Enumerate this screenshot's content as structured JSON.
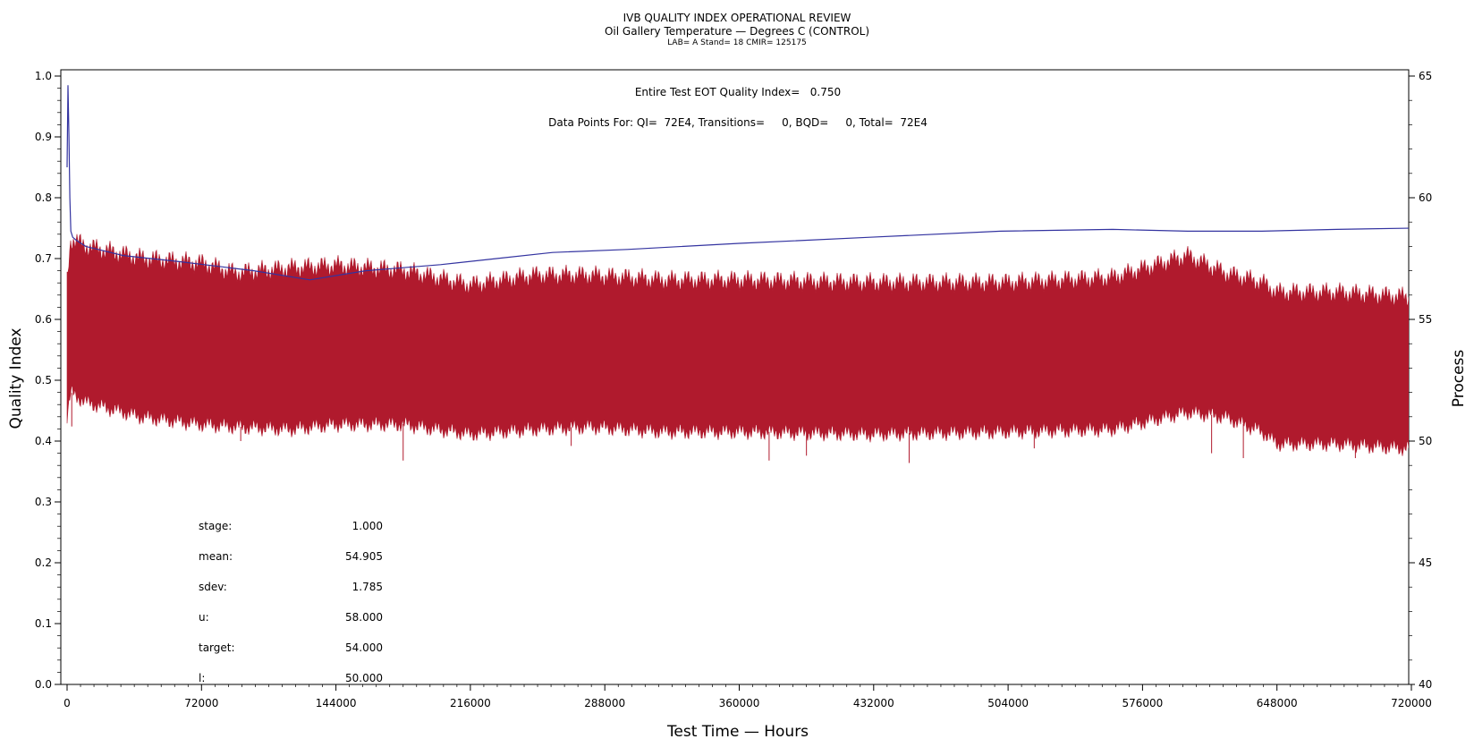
{
  "header": {
    "title": "IVB QUALITY INDEX OPERATIONAL REVIEW",
    "subtitle": "Oil Gallery Temperature — Degrees C (CONTROL)",
    "info": "LAB= A Stand= 18 CMIR= 125175"
  },
  "annotations": {
    "quality_index": "Entire Test EOT Quality Index=   0.750",
    "data_points": "Data Points For: QI=  72E4, Transitions=     0, BQD=     0, Total=  72E4"
  },
  "stats": [
    {
      "label": "stage:",
      "value": "1.000"
    },
    {
      "label": "mean:",
      "value": "54.905"
    },
    {
      "label": "sdev:",
      "value": "1.785"
    },
    {
      "label": "u:",
      "value": "58.000"
    },
    {
      "label": "target:",
      "value": "54.000"
    },
    {
      "label": "l:",
      "value": "50.000"
    }
  ],
  "chart_data": {
    "type": "line",
    "xlabel": "Test Time — Hours",
    "ylabel_left": "Quality Index",
    "ylabel_right": "Process",
    "xlim": [
      0,
      720000
    ],
    "ylim_left": [
      0.0,
      1.0
    ],
    "ylim_right": [
      40,
      65
    ],
    "x_ticks": [
      "0",
      "72000",
      "144000",
      "216000",
      "288000",
      "360000",
      "432000",
      "504000",
      "576000",
      "648000",
      "720000"
    ],
    "y_left_ticks": [
      "0.0",
      "0.1",
      "0.2",
      "0.3",
      "0.4",
      "0.5",
      "0.6",
      "0.7",
      "0.8",
      "0.9",
      "1.0"
    ],
    "y_right_ticks": [
      "40",
      "45",
      "50",
      "55",
      "60",
      "65"
    ],
    "colors": {
      "quality_index": "#3333a0",
      "process": "#b01a2d"
    },
    "series": [
      {
        "axis": "left",
        "x": [
          0,
          500,
          1000,
          1500,
          2000,
          3000,
          5000,
          10000,
          30000,
          60000,
          100000,
          130000,
          160000,
          180000,
          200000,
          230000,
          260000,
          300000,
          360000,
          430000,
          500000,
          560000,
          600000,
          640000,
          680000,
          720000
        ],
        "values": [
          0.85,
          0.985,
          0.9,
          0.8,
          0.745,
          0.735,
          0.73,
          0.72,
          0.705,
          0.695,
          0.68,
          0.665,
          0.68,
          0.685,
          0.69,
          0.7,
          0.71,
          0.715,
          0.725,
          0.735,
          0.745,
          0.748,
          0.745,
          0.745,
          0.748,
          0.75
        ]
      },
      {
        "axis": "right",
        "band": true,
        "x": [
          0,
          2000,
          10000,
          40000,
          72000,
          90000,
          120000,
          144000,
          180000,
          216000,
          250000,
          280000,
          320000,
          360000,
          430000,
          504000,
          560000,
          600000,
          620000,
          640000,
          648000,
          680000,
          720000
        ],
        "max": [
          56.6,
          58.3,
          58.0,
          57.5,
          57.3,
          56.9,
          57.1,
          57.2,
          57.0,
          56.4,
          56.8,
          56.8,
          56.6,
          56.6,
          56.5,
          56.5,
          56.7,
          57.6,
          56.9,
          56.5,
          56.1,
          56.1,
          55.9
        ],
        "min": [
          51.0,
          52.0,
          51.6,
          51.0,
          50.7,
          50.6,
          50.5,
          50.7,
          50.7,
          50.3,
          50.5,
          50.6,
          50.4,
          50.4,
          50.3,
          50.4,
          50.5,
          51.2,
          51.0,
          50.4,
          49.9,
          49.9,
          49.7
        ]
      }
    ]
  }
}
